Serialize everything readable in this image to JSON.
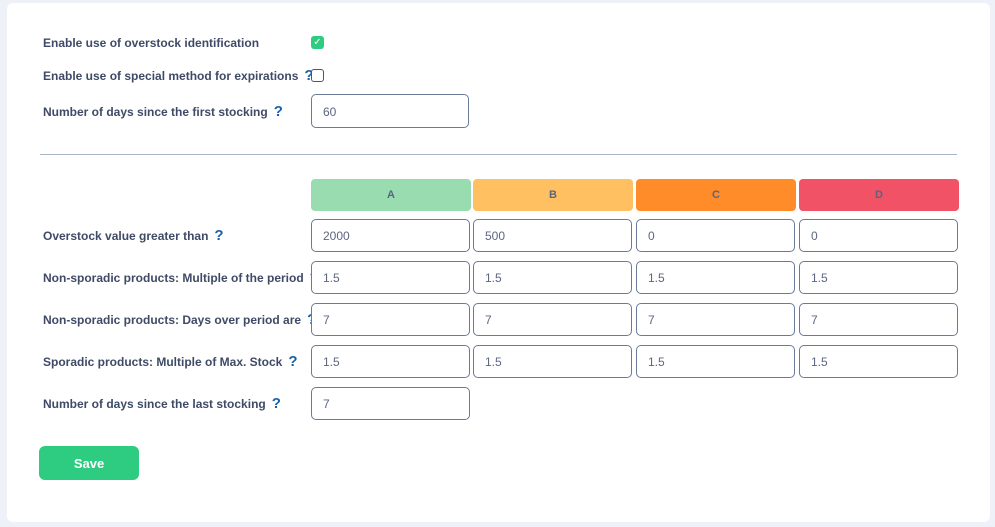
{
  "settings": {
    "overstock_label": "Enable use of overstock identification",
    "overstock_checked": true,
    "expirations_label": "Enable use of special method for expirations",
    "expirations_checked": false,
    "first_stocking_label": "Number of days since the first stocking",
    "first_stocking_value": "60"
  },
  "help_icon": "?",
  "check_icon": "✓",
  "categories": [
    {
      "label": "A",
      "color": "#98dcb0"
    },
    {
      "label": "B",
      "color": "#ffc062"
    },
    {
      "label": "C",
      "color": "#ff8c28"
    },
    {
      "label": "D",
      "color": "#f25265"
    }
  ],
  "rows": [
    {
      "label": "Overstock value greater than",
      "values": [
        "2000",
        "500",
        "0",
        "0"
      ]
    },
    {
      "label": "Non-sporadic products: Multiple of the period",
      "values": [
        "1.5",
        "1.5",
        "1.5",
        "1.5"
      ]
    },
    {
      "label": "Non-sporadic products: Days over period are",
      "values": [
        "7",
        "7",
        "7",
        "7"
      ]
    },
    {
      "label": "Sporadic products: Multiple of Max. Stock",
      "values": [
        "1.5",
        "1.5",
        "1.5",
        "1.5"
      ]
    },
    {
      "label": "Number of days since the last stocking",
      "values": [
        "7"
      ]
    }
  ],
  "save_label": "Save"
}
